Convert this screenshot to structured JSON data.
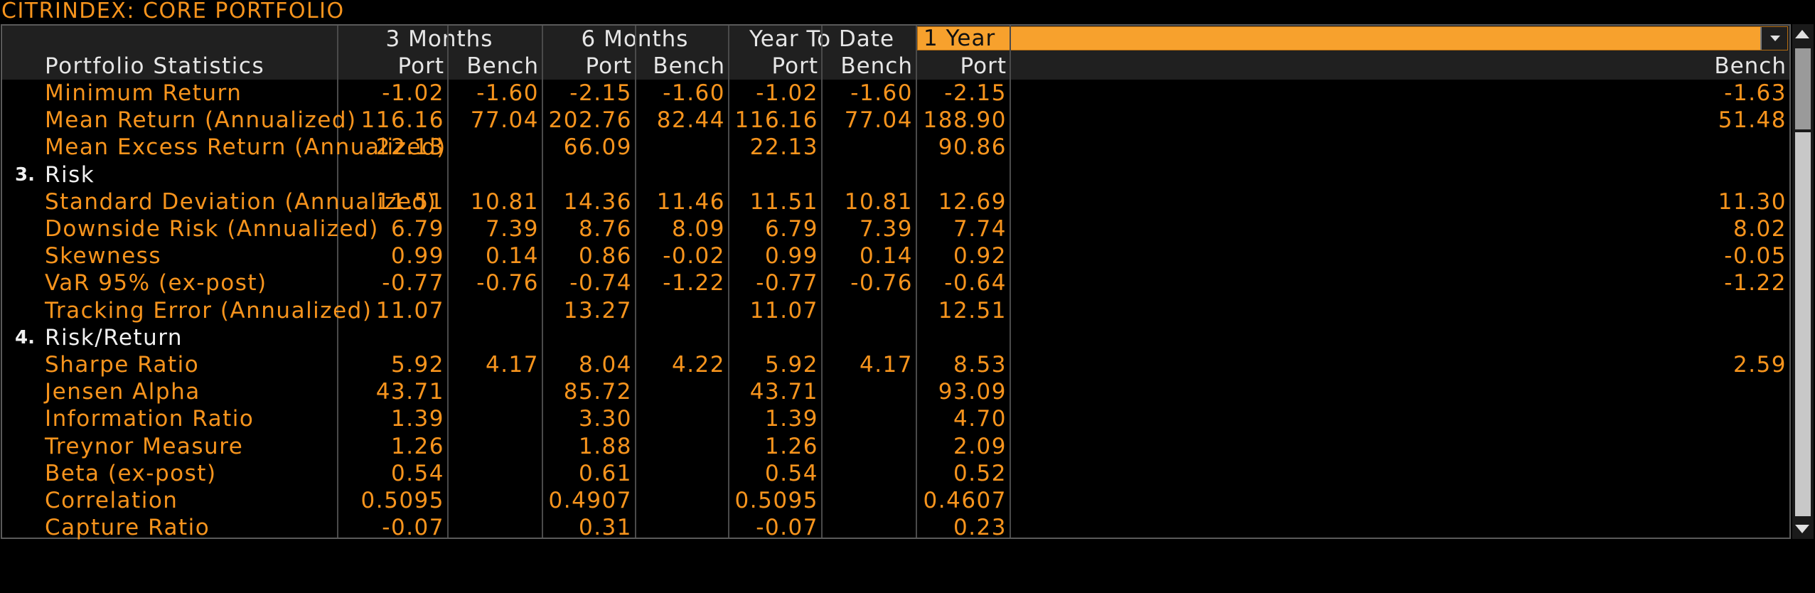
{
  "window": {
    "title": "CITRINDEX: CORE PORTFOLIO"
  },
  "table": {
    "stats_header": "Portfolio Statistics",
    "periods": [
      {
        "label": "3 Months"
      },
      {
        "label": "6 Months"
      },
      {
        "label": "Year To Date"
      },
      {
        "label": "1 Year",
        "is_dropdown": true
      }
    ],
    "sub_headers": [
      "Port",
      "Bench",
      "Port",
      "Bench",
      "Port",
      "Bench",
      "Port",
      "Bench"
    ],
    "rows": [
      {
        "label": "Minimum Return",
        "values": [
          "-1.02",
          "-1.60",
          "-2.15",
          "-1.60",
          "-1.02",
          "-1.60",
          "-2.15",
          "-1.63"
        ]
      },
      {
        "label": "Mean Return (Annualized)",
        "values": [
          "116.16",
          "77.04",
          "202.76",
          "82.44",
          "116.16",
          "77.04",
          "188.90",
          "51.48"
        ]
      },
      {
        "label": "Mean Excess Return (Annualized)",
        "values": [
          "22.13",
          "",
          "66.09",
          "",
          "22.13",
          "",
          "90.86",
          ""
        ]
      },
      {
        "section": true,
        "number": "3.",
        "label": "Risk"
      },
      {
        "label": "Standard Deviation (Annualized)",
        "values": [
          "11.51",
          "10.81",
          "14.36",
          "11.46",
          "11.51",
          "10.81",
          "12.69",
          "11.30"
        ]
      },
      {
        "label": "Downside Risk (Annualized)",
        "values": [
          "6.79",
          "7.39",
          "8.76",
          "8.09",
          "6.79",
          "7.39",
          "7.74",
          "8.02"
        ]
      },
      {
        "label": "Skewness",
        "values": [
          "0.99",
          "0.14",
          "0.86",
          "-0.02",
          "0.99",
          "0.14",
          "0.92",
          "-0.05"
        ]
      },
      {
        "label": "VaR 95% (ex-post)",
        "values": [
          "-0.77",
          "-0.76",
          "-0.74",
          "-1.22",
          "-0.77",
          "-0.76",
          "-0.64",
          "-1.22"
        ]
      },
      {
        "label": "Tracking Error (Annualized)",
        "values": [
          "11.07",
          "",
          "13.27",
          "",
          "11.07",
          "",
          "12.51",
          ""
        ]
      },
      {
        "section": true,
        "number": "4.",
        "label": "Risk/Return"
      },
      {
        "label": "Sharpe Ratio",
        "values": [
          "5.92",
          "4.17",
          "8.04",
          "4.22",
          "5.92",
          "4.17",
          "8.53",
          "2.59"
        ]
      },
      {
        "label": "Jensen Alpha",
        "values": [
          "43.71",
          "",
          "85.72",
          "",
          "43.71",
          "",
          "93.09",
          ""
        ]
      },
      {
        "label": "Information Ratio",
        "values": [
          "1.39",
          "",
          "3.30",
          "",
          "1.39",
          "",
          "4.70",
          ""
        ]
      },
      {
        "label": "Treynor Measure",
        "values": [
          "1.26",
          "",
          "1.88",
          "",
          "1.26",
          "",
          "2.09",
          ""
        ]
      },
      {
        "label": "Beta (ex-post)",
        "values": [
          "0.54",
          "",
          "0.61",
          "",
          "0.54",
          "",
          "0.52",
          ""
        ]
      },
      {
        "label": "Correlation",
        "values": [
          "0.5095",
          "",
          "0.4907",
          "",
          "0.5095",
          "",
          "0.4607",
          ""
        ]
      },
      {
        "label": "Capture Ratio",
        "values": [
          "-0.07",
          "",
          "0.31",
          "",
          "-0.07",
          "",
          "0.23",
          ""
        ]
      }
    ]
  },
  "colors": {
    "background": "#000000",
    "label_text": "#f7941d",
    "header_text": "#e6e6e6",
    "header_bg": "#202020",
    "dropdown_bg": "#f7a12d"
  },
  "icons": {
    "dropdown": "chevron-down-icon",
    "scroll_up": "arrow-up-icon",
    "scroll_down": "arrow-down-icon"
  }
}
